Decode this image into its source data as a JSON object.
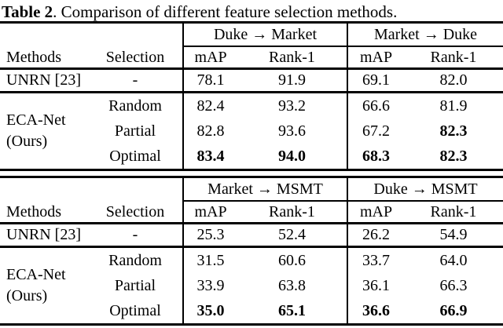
{
  "title": {
    "tag": "Table 2",
    "rest": ". Comparison of different feature selection methods."
  },
  "header": {
    "methods": "Methods",
    "selection": "Selection",
    "map": "mAP",
    "rank1": "Rank-1"
  },
  "colors": {
    "text": "#000000",
    "background": "#ffffff",
    "rule": "#000000"
  },
  "tables": [
    {
      "groups": [
        "Duke → Market",
        "Market → Duke"
      ],
      "baseline": {
        "method": "UNRN [23]",
        "selection": "-",
        "cells": [
          {
            "v": "78.1"
          },
          {
            "v": "91.9"
          },
          {
            "v": "69.1"
          },
          {
            "v": "82.0"
          }
        ]
      },
      "ours": {
        "method_line1": "ECA-Net",
        "method_line2": "(Ours)",
        "rows": [
          {
            "selection": "Random",
            "cells": [
              {
                "v": "82.4"
              },
              {
                "v": "93.2"
              },
              {
                "v": "66.6"
              },
              {
                "v": "81.9"
              }
            ]
          },
          {
            "selection": "Partial",
            "cells": [
              {
                "v": "82.8"
              },
              {
                "v": "93.6"
              },
              {
                "v": "67.2"
              },
              {
                "v": "82.3",
                "b": true
              }
            ]
          },
          {
            "selection": "Optimal",
            "cells": [
              {
                "v": "83.4",
                "b": true
              },
              {
                "v": "94.0",
                "b": true
              },
              {
                "v": "68.3",
                "b": true
              },
              {
                "v": "82.3",
                "b": true
              }
            ]
          }
        ]
      }
    },
    {
      "groups": [
        "Market → MSMT",
        "Duke → MSMT"
      ],
      "baseline": {
        "method": "UNRN [23]",
        "selection": "-",
        "cells": [
          {
            "v": "25.3"
          },
          {
            "v": "52.4"
          },
          {
            "v": "26.2"
          },
          {
            "v": "54.9"
          }
        ]
      },
      "ours": {
        "method_line1": "ECA-Net",
        "method_line2": "(Ours)",
        "rows": [
          {
            "selection": "Random",
            "cells": [
              {
                "v": "31.5"
              },
              {
                "v": "60.6"
              },
              {
                "v": "33.7"
              },
              {
                "v": "64.0"
              }
            ]
          },
          {
            "selection": "Partial",
            "cells": [
              {
                "v": "33.9"
              },
              {
                "v": "63.8"
              },
              {
                "v": "36.1"
              },
              {
                "v": "66.3"
              }
            ]
          },
          {
            "selection": "Optimal",
            "cells": [
              {
                "v": "35.0",
                "b": true
              },
              {
                "v": "65.1",
                "b": true
              },
              {
                "v": "36.6",
                "b": true
              },
              {
                "v": "66.9",
                "b": true
              }
            ]
          }
        ]
      }
    }
  ]
}
